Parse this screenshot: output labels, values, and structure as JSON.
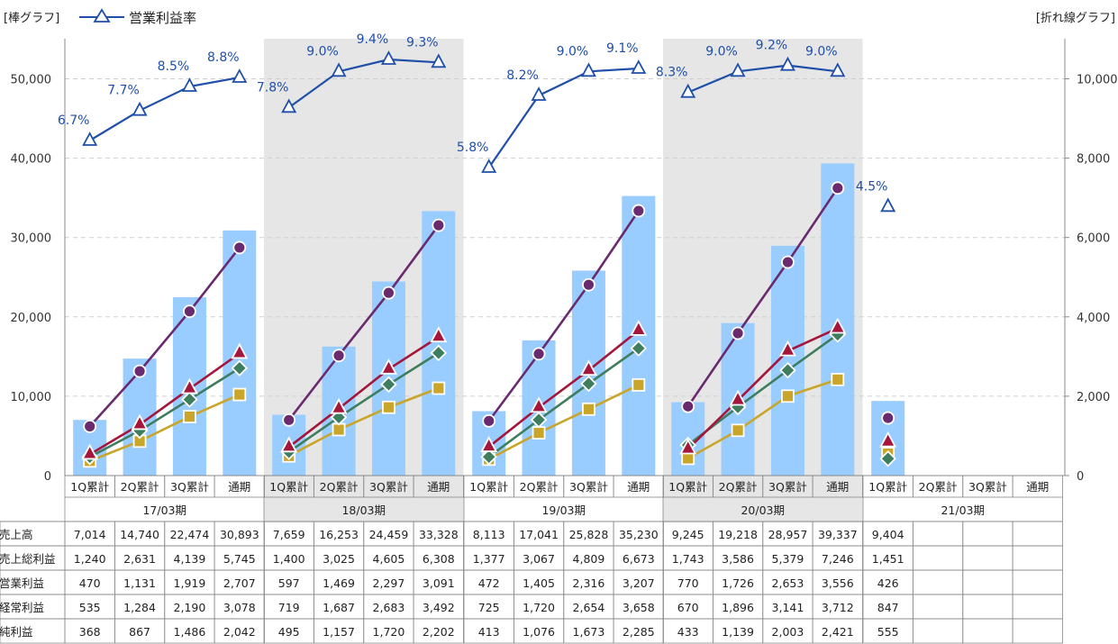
{
  "legend": {
    "left_axis_label": "[棒グラフ]",
    "right_axis_label": "[折れ線グラフ]",
    "op_margin_label": "営業利益率"
  },
  "colors": {
    "bar": "#99CCFF",
    "shade": "#E6E6E6",
    "margin_line": "#1F4FA8",
    "gross": "#6A2A6E",
    "ordinary": "#A5163C",
    "operating": "#3E7D5E",
    "net": "#C9A52A"
  },
  "chart_data": {
    "type": "bar",
    "left_axis": {
      "ylim": [
        0,
        50000
      ],
      "ticks": [
        "0",
        "10,000",
        "20,000",
        "30,000",
        "40,000",
        "50,000"
      ]
    },
    "right_axis": {
      "ylim": [
        0,
        10000
      ],
      "ticks": [
        "0",
        "2,000",
        "4,000",
        "6,000",
        "8,000",
        "10,000"
      ]
    },
    "periods": [
      {
        "label": "17/03期",
        "shaded": false
      },
      {
        "label": "18/03期",
        "shaded": true
      },
      {
        "label": "19/03期",
        "shaded": false
      },
      {
        "label": "20/03期",
        "shaded": true
      },
      {
        "label": "21/03期",
        "shaded": false
      }
    ],
    "quarter_labels": [
      "1Q累計",
      "2Q累計",
      "3Q累計",
      "通期"
    ],
    "series": [
      {
        "name": "売上高",
        "axis": "left",
        "kind": "bar",
        "values": [
          [
            7014,
            14740,
            22474,
            30893
          ],
          [
            7659,
            16253,
            24459,
            33328
          ],
          [
            8113,
            17041,
            25828,
            35230
          ],
          [
            9245,
            19218,
            28957,
            39337
          ],
          [
            9404,
            null,
            null,
            null
          ]
        ],
        "display": [
          [
            "7,014",
            "14,740",
            "22,474",
            "30,893"
          ],
          [
            "7,659",
            "16,253",
            "24,459",
            "33,328"
          ],
          [
            "8,113",
            "17,041",
            "25,828",
            "35,230"
          ],
          [
            "9,245",
            "19,218",
            "28,957",
            "39,337"
          ],
          [
            "9,404",
            "",
            "",
            ""
          ]
        ]
      },
      {
        "name": "売上総利益",
        "axis": "right",
        "kind": "line",
        "marker": "circle",
        "values": [
          [
            1240,
            2631,
            4139,
            5745
          ],
          [
            1400,
            3025,
            4605,
            6308
          ],
          [
            1377,
            3067,
            4809,
            6673
          ],
          [
            1743,
            3586,
            5379,
            7246
          ],
          [
            1451,
            null,
            null,
            null
          ]
        ],
        "display": [
          [
            "1,240",
            "2,631",
            "4,139",
            "5,745"
          ],
          [
            "1,400",
            "3,025",
            "4,605",
            "6,308"
          ],
          [
            "1,377",
            "3,067",
            "4,809",
            "6,673"
          ],
          [
            "1,743",
            "3,586",
            "5,379",
            "7,246"
          ],
          [
            "1,451",
            "",
            "",
            ""
          ]
        ]
      },
      {
        "name": "営業利益",
        "axis": "right",
        "kind": "line",
        "marker": "diamond",
        "values": [
          [
            470,
            1131,
            1919,
            2707
          ],
          [
            597,
            1469,
            2297,
            3091
          ],
          [
            472,
            1405,
            2316,
            3207
          ],
          [
            770,
            1726,
            2653,
            3556
          ],
          [
            426,
            null,
            null,
            null
          ]
        ],
        "display": [
          [
            "470",
            "1,131",
            "1,919",
            "2,707"
          ],
          [
            "597",
            "1,469",
            "2,297",
            "3,091"
          ],
          [
            "472",
            "1,405",
            "2,316",
            "3,207"
          ],
          [
            "770",
            "1,726",
            "2,653",
            "3,556"
          ],
          [
            "426",
            "",
            "",
            ""
          ]
        ]
      },
      {
        "name": "経常利益",
        "axis": "right",
        "kind": "line",
        "marker": "triangle",
        "values": [
          [
            535,
            1284,
            2190,
            3078
          ],
          [
            719,
            1687,
            2683,
            3492
          ],
          [
            725,
            1720,
            2654,
            3658
          ],
          [
            670,
            1896,
            3141,
            3712
          ],
          [
            847,
            null,
            null,
            null
          ]
        ],
        "display": [
          [
            "535",
            "1,284",
            "2,190",
            "3,078"
          ],
          [
            "719",
            "1,687",
            "2,683",
            "3,492"
          ],
          [
            "725",
            "1,720",
            "2,654",
            "3,658"
          ],
          [
            "670",
            "1,896",
            "3,141",
            "3,712"
          ],
          [
            "847",
            "",
            "",
            ""
          ]
        ]
      },
      {
        "name": "純利益",
        "axis": "right",
        "kind": "line",
        "marker": "square",
        "values": [
          [
            368,
            867,
            1486,
            2042
          ],
          [
            495,
            1157,
            1720,
            2202
          ],
          [
            413,
            1076,
            1673,
            2285
          ],
          [
            433,
            1139,
            2003,
            2421
          ],
          [
            555,
            null,
            null,
            null
          ]
        ],
        "display": [
          [
            "368",
            "867",
            "1,486",
            "2,042"
          ],
          [
            "495",
            "1,157",
            "1,720",
            "2,202"
          ],
          [
            "413",
            "1,076",
            "1,673",
            "2,285"
          ],
          [
            "433",
            "1,139",
            "2,003",
            "2,421"
          ],
          [
            "555",
            "",
            "",
            ""
          ]
        ]
      }
    ],
    "operating_margin": {
      "values": [
        [
          6.7,
          7.7,
          8.5,
          8.8
        ],
        [
          7.8,
          9.0,
          9.4,
          9.3
        ],
        [
          5.8,
          8.2,
          9.0,
          9.1
        ],
        [
          8.3,
          9.0,
          9.2,
          9.0
        ],
        [
          4.5,
          null,
          null,
          null
        ]
      ],
      "labels": [
        [
          "6.7%",
          "7.7%",
          "8.5%",
          "8.8%"
        ],
        [
          "7.8%",
          "9.0%",
          "9.4%",
          "9.3%"
        ],
        [
          "5.8%",
          "8.2%",
          "9.0%",
          "9.1%"
        ],
        [
          "8.3%",
          "9.0%",
          "9.2%",
          "9.0%"
        ],
        [
          "4.5%",
          "",
          "",
          ""
        ]
      ]
    }
  }
}
